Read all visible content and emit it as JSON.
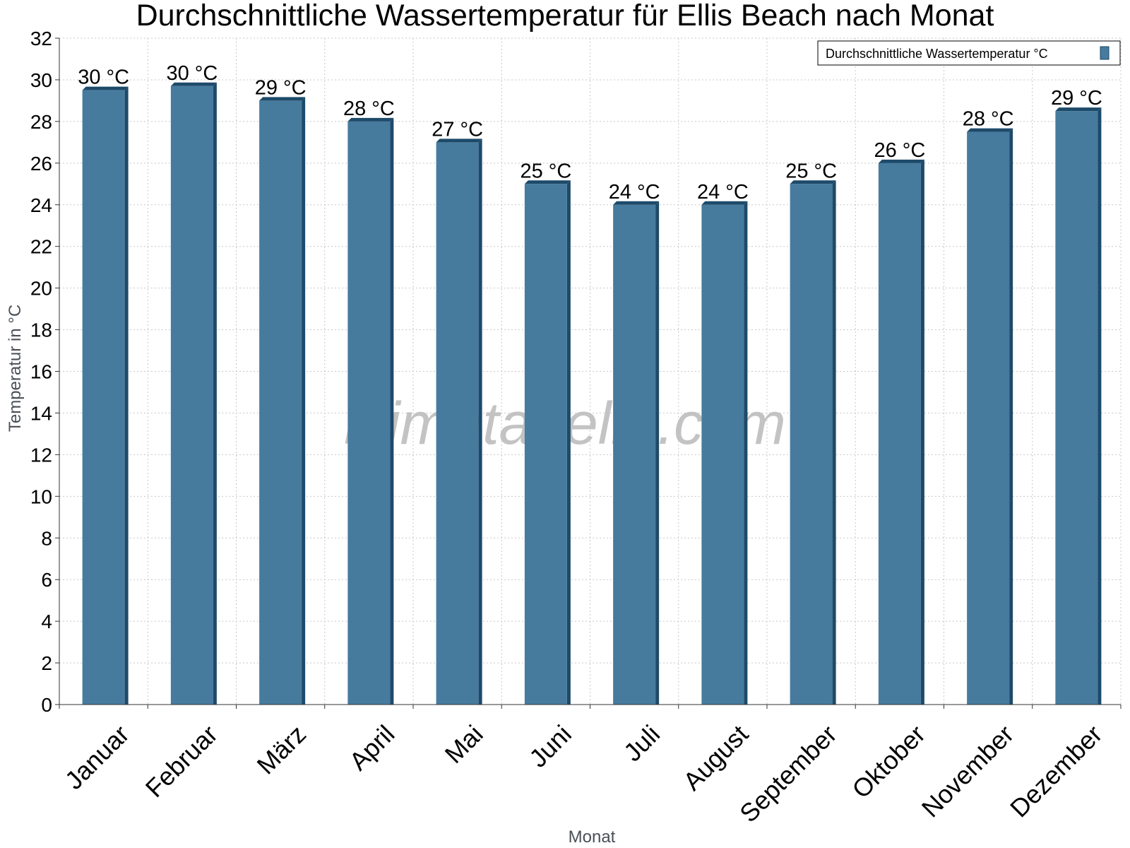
{
  "chart_data": {
    "type": "bar",
    "title": "Durchschnittliche Wassertemperatur für Ellis Beach nach Monat",
    "xlabel": "Monat",
    "ylabel": "Temperatur in °C",
    "ylim": [
      0,
      32
    ],
    "ytick_step": 2,
    "grid": true,
    "legend_position": "top-right",
    "categories": [
      "Januar",
      "Februar",
      "März",
      "April",
      "Mai",
      "Juni",
      "Juli",
      "August",
      "September",
      "Oktober",
      "November",
      "Dezember"
    ],
    "series": [
      {
        "name": "Durchschnittliche Wassertemperatur °C",
        "values": [
          29.5,
          29.7,
          29.0,
          28.0,
          27.0,
          25.0,
          24.0,
          24.0,
          25.0,
          26.0,
          27.5,
          28.5
        ],
        "labels": [
          "30 °C",
          "30 °C",
          "29 °C",
          "28 °C",
          "27 °C",
          "25 °C",
          "24 °C",
          "24 °C",
          "25 °C",
          "26 °C",
          "28 °C",
          "29 °C"
        ],
        "color": "#467b9e",
        "edge_color": "#1e4a6a"
      }
    ]
  },
  "watermark": "klimatabelle.com"
}
